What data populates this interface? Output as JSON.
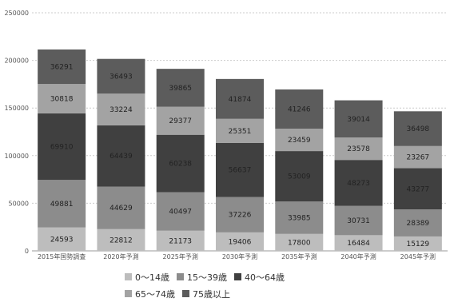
{
  "chart_data": {
    "type": "bar",
    "stacked": true,
    "categories": [
      "2015年国勢調査",
      "2020年予測",
      "2025年予測",
      "2030年予測",
      "2035年予測",
      "2040年予測",
      "2045年予測"
    ],
    "series": [
      {
        "name": "0〜14歳",
        "color": "#bdbdbd",
        "values": [
          24593,
          22812,
          21173,
          19406,
          17800,
          16484,
          15129
        ]
      },
      {
        "name": "15〜39歳",
        "color": "#8c8c8c",
        "values": [
          49881,
          44629,
          40497,
          37226,
          33985,
          30731,
          28389
        ]
      },
      {
        "name": "40〜64歳",
        "color": "#404040",
        "values": [
          69910,
          64439,
          60238,
          56637,
          53009,
          48273,
          43277
        ]
      },
      {
        "name": "65〜74歳",
        "color": "#a3a3a3",
        "values": [
          30818,
          33224,
          29377,
          25351,
          23459,
          23578,
          23267
        ]
      },
      {
        "name": "75歳以上",
        "color": "#5c5c5c",
        "values": [
          36291,
          36493,
          39865,
          41874,
          41246,
          39014,
          36498
        ]
      }
    ],
    "y_ticks": [
      "0",
      "50000",
      "100000",
      "150000",
      "200000",
      "250000"
    ],
    "ylim": [
      0,
      250000
    ],
    "grid": true,
    "legend_position": "bottom"
  }
}
